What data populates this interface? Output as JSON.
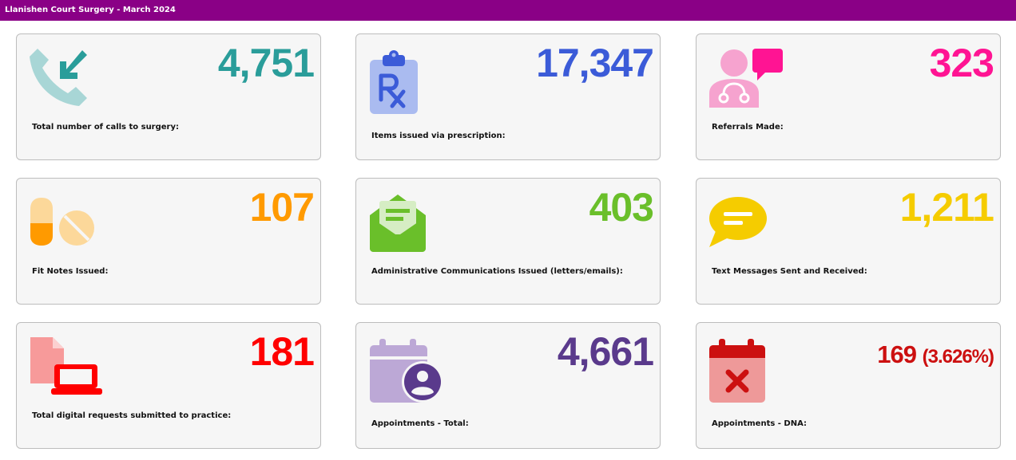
{
  "window": {
    "title": "Llanishen Court Surgery - March 2024"
  },
  "colors": {
    "teal": "#2a9d9a",
    "blue": "#3b5bd8",
    "pink": "#ff1493",
    "orange": "#ff9a00",
    "green": "#6abf2a",
    "yellow": "#f5cc00",
    "red": "#ff0000",
    "purple": "#5a3a8c",
    "darkred": "#cc1010"
  },
  "cards": [
    {
      "value": "4,751",
      "label": "Total number of calls to surgery:",
      "icon": "phone-incoming-icon"
    },
    {
      "value": "17,347",
      "label": "Items issued via prescription:",
      "icon": "prescription-clipboard-icon"
    },
    {
      "value": "323",
      "label": "Referrals Made:",
      "icon": "doctor-chat-icon"
    },
    {
      "value": "107",
      "label": "Fit Notes Issued:",
      "icon": "pills-icon"
    },
    {
      "value": "403",
      "label": "Administrative Communications Issued (letters/emails):",
      "icon": "envelope-letter-icon"
    },
    {
      "value": "1,211",
      "label": "Text Messages Sent and Received:",
      "icon": "chat-bubble-icon"
    },
    {
      "value": "181",
      "label": "Total digital requests submitted to practice:",
      "icon": "document-laptop-icon"
    },
    {
      "value": "4,661",
      "label": "Appointments - Total:",
      "icon": "calendar-user-icon"
    },
    {
      "value": "169",
      "percent": "(3.626%)",
      "label": "Appointments - DNA:",
      "icon": "calendar-cancel-icon"
    }
  ]
}
